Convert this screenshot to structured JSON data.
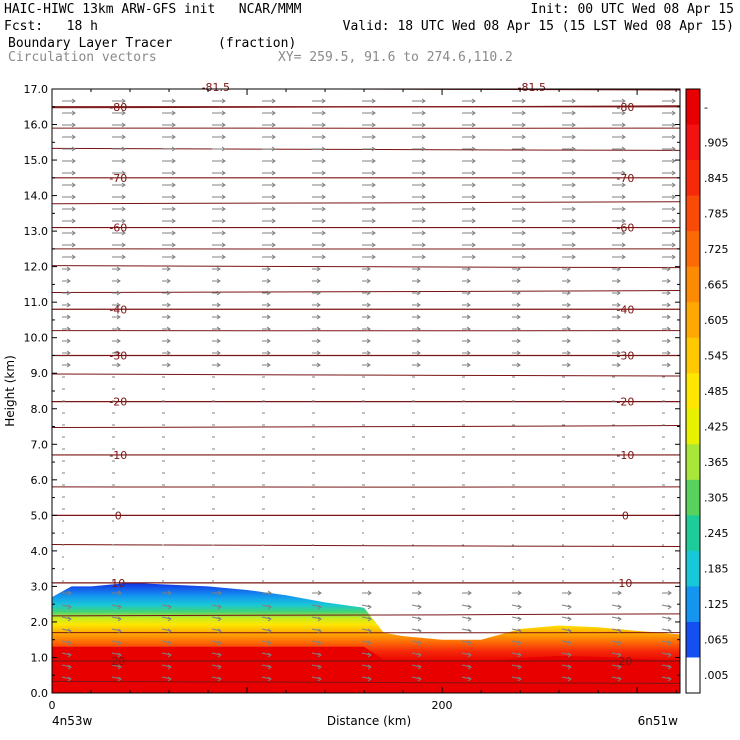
{
  "header": {
    "line1_left": "HAIC-HIWC 13km ARW-GFS init   NCAR/MMM",
    "line1_right": "Init: 00 UTC Wed 08 Apr 15",
    "fcst": "Fcst:   18 h",
    "valid": "Valid: 18 UTC Wed 08 Apr 15 (15 LST Wed 08 Apr 15)",
    "field1_name": "Boundary Layer Tracer",
    "field1_units": "(fraction)",
    "field2_name": "Circulation vectors",
    "xy_info": "XY= 259.5, 91.6 to 274.6,110.2"
  },
  "colors": {
    "contour": "#7b1414",
    "vector": "#808080",
    "frame": "#000000"
  },
  "chart_data": {
    "type": "heatmap",
    "xlabel": "Distance (km)",
    "ylabel": "Height (km)",
    "xlim": [
      0,
      322
    ],
    "ylim": [
      0.0,
      17.0
    ],
    "x_ticks": [
      {
        "value": 0,
        "label": "0"
      },
      {
        "value": 200,
        "label": "200"
      }
    ],
    "x_end_labels": {
      "left": "4n53w",
      "right": "6n51w"
    },
    "y_ticks": [
      "0.0",
      "1.0",
      "2.0",
      "3.0",
      "4.0",
      "5.0",
      "6.0",
      "7.0",
      "8.0",
      "9.0",
      "10.0",
      "11.0",
      "12.0",
      "13.0",
      "14.0",
      "15.0",
      "16.0",
      "17.0"
    ],
    "colorbar": {
      "labels": [
        "-",
        ".905",
        ".845",
        ".785",
        ".725",
        ".665",
        ".605",
        ".545",
        ".485",
        ".425",
        ".365",
        ".305",
        ".245",
        ".185",
        ".125",
        ".065",
        ".005"
      ],
      "colors_top_to_bottom": [
        "#e80000",
        "#f21212",
        "#f62a0a",
        "#fa4a08",
        "#fc6a06",
        "#fd8a05",
        "#fea804",
        "#ffc800",
        "#ffe600",
        "#e6f000",
        "#a8e63a",
        "#58d25a",
        "#1ecc9a",
        "#18c8d8",
        "#1496f0",
        "#1450f0",
        "#ffffff"
      ]
    },
    "tracer_depth": {
      "x": [
        0,
        10,
        20,
        40,
        60,
        80,
        100,
        120,
        140,
        160,
        170,
        180,
        200,
        220,
        240,
        260,
        280,
        300,
        322
      ],
      "top_km": [
        2.7,
        3.0,
        3.0,
        3.1,
        3.05,
        3.0,
        2.9,
        2.75,
        2.55,
        2.4,
        1.7,
        1.6,
        1.5,
        1.5,
        1.8,
        1.9,
        1.85,
        1.75,
        1.65
      ]
    },
    "isotherms": [
      {
        "value": "-80",
        "height_km": 16.5
      },
      {
        "value": "-70",
        "height_km": 14.5
      },
      {
        "value": "-60",
        "height_km": 13.1
      },
      {
        "value": "-40",
        "height_km": 10.8
      },
      {
        "value": "-30",
        "height_km": 9.5
      },
      {
        "value": "-20",
        "height_km": 8.2
      },
      {
        "value": "-10",
        "height_km": 6.7
      },
      {
        "value": "0",
        "height_km": 5.0
      },
      {
        "value": "10",
        "height_km": 3.1
      },
      {
        "value": "20",
        "height_km": 0.9
      }
    ],
    "isotherm_top_label": "-81.5",
    "theta_lines_km": [
      0.3,
      1.7,
      2.2,
      4.15,
      5.8,
      7.5,
      8.95,
      10.2,
      11.3,
      12.0,
      12.5,
      13.8,
      15.3,
      15.9,
      16.5,
      17.0
    ]
  }
}
